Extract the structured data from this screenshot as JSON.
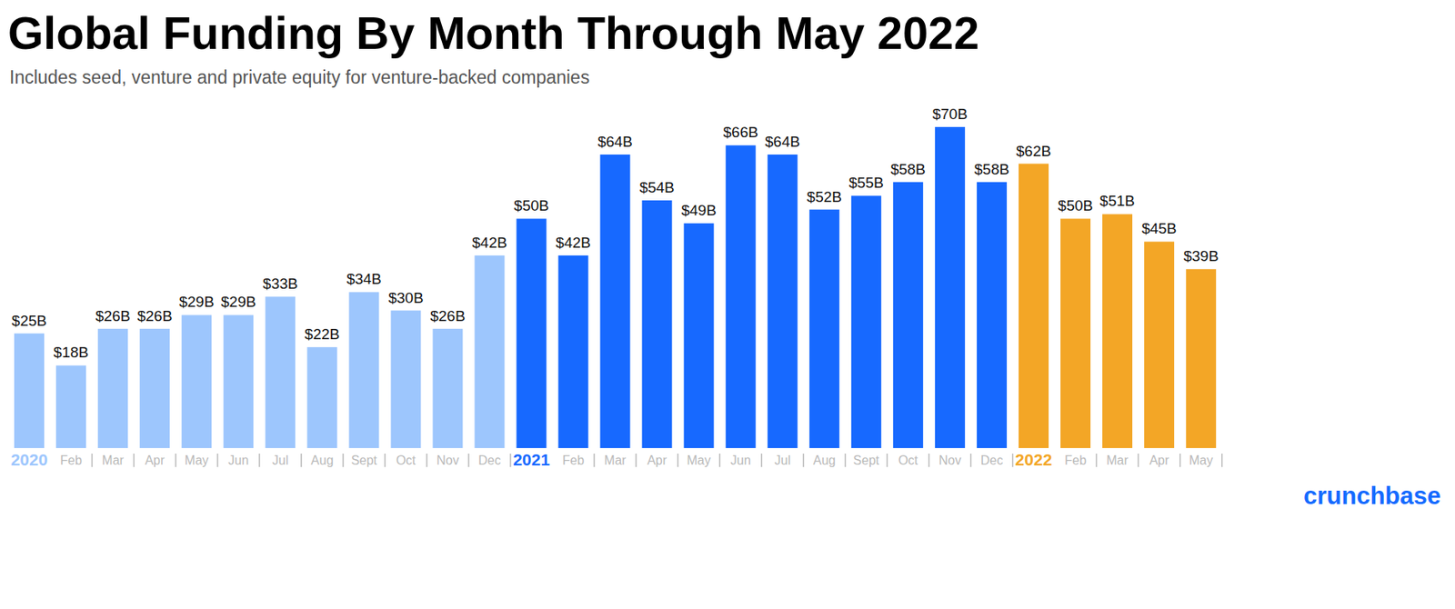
{
  "chart_data": {
    "type": "bar",
    "title": "Global Funding By Month Through May 2022",
    "subtitle": "Includes seed, venture and private equity for venture-backed companies",
    "source": "crunchbase",
    "categories": [
      "2020",
      "Feb",
      "Mar",
      "Apr",
      "May",
      "Jun",
      "Jul",
      "Aug",
      "Sept",
      "Oct",
      "Nov",
      "Dec",
      "2021",
      "Feb",
      "Mar",
      "Apr",
      "May",
      "Jun",
      "Jul",
      "Aug",
      "Sept",
      "Oct",
      "Nov",
      "Dec",
      "2022",
      "Feb",
      "Mar",
      "Apr",
      "May"
    ],
    "values": [
      25,
      18,
      26,
      26,
      29,
      29,
      33,
      22,
      34,
      30,
      26,
      42,
      50,
      42,
      64,
      54,
      49,
      66,
      64,
      52,
      55,
      58,
      70,
      58,
      62,
      50,
      51,
      45,
      39
    ],
    "value_labels": [
      "$25B",
      "$18B",
      "$26B",
      "$26B",
      "$29B",
      "$29B",
      "$33B",
      "$22B",
      "$34B",
      "$30B",
      "$26B",
      "$42B",
      "$50B",
      "$42B",
      "$64B",
      "$54B",
      "$49B",
      "$66B",
      "$64B",
      "$52B",
      "$55B",
      "$58B",
      "$70B",
      "$58B",
      "$62B",
      "$50B",
      "$51B",
      "$45B",
      "$39B"
    ],
    "colors": [
      "#9dc6fd",
      "#9dc6fd",
      "#9dc6fd",
      "#9dc6fd",
      "#9dc6fd",
      "#9dc6fd",
      "#9dc6fd",
      "#9dc6fd",
      "#9dc6fd",
      "#9dc6fd",
      "#9dc6fd",
      "#9dc6fd",
      "#1769ff",
      "#1769ff",
      "#1769ff",
      "#1769ff",
      "#1769ff",
      "#1769ff",
      "#1769ff",
      "#1769ff",
      "#1769ff",
      "#1769ff",
      "#1769ff",
      "#1769ff",
      "#f3a626",
      "#f3a626",
      "#f3a626",
      "#f3a626",
      "#f3a626"
    ],
    "ylim": [
      0,
      70
    ],
    "data_labels": true,
    "tick_labels": "x",
    "grid": false
  }
}
